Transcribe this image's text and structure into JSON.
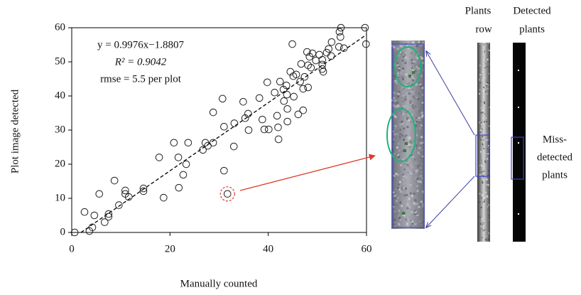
{
  "chart_data": {
    "type": "scatter",
    "x_label": "Manually counted",
    "y_label": "Plot image detected",
    "equation": [
      "y = 0.9976x−1.8807",
      "R² = 0.9042",
      "rmse = 5.5 per plot"
    ],
    "fit": {
      "slope": 0.9976,
      "intercept": -1.8807
    },
    "xlim": [
      0,
      60
    ],
    "ylim": [
      0,
      60
    ],
    "xticks": [
      0,
      20,
      40,
      60
    ],
    "yticks": [
      0,
      10,
      20,
      30,
      40,
      50,
      60
    ],
    "color": "#222222",
    "highlight_index": 32,
    "x": [
      0.6,
      2.6,
      3.6,
      4.2,
      4.6,
      5.6,
      6.7,
      7.5,
      7.5,
      8.7,
      9.6,
      10.9,
      10.9,
      11.6,
      14.6,
      14.6,
      17.8,
      18.7,
      20.8,
      21.7,
      21.8,
      22.7,
      23.3,
      23.7,
      26.7,
      27.2,
      27.7,
      28.8,
      28.8,
      30.7,
      31,
      31,
      31.7,
      33,
      33.1,
      34.9,
      35.3,
      35.9,
      36,
      38.2,
      38.8,
      39.2,
      40.1,
      39.8,
      41.3,
      41.8,
      42,
      42.1,
      42.4,
      43.1,
      43.2,
      43.7,
      43.8,
      43.9,
      43.9,
      44.5,
      44.9,
      45.1,
      45.2,
      45.7,
      46.1,
      46.5,
      46.7,
      47.1,
      47.1,
      47.4,
      47.9,
      48.1,
      48.1,
      48.4,
      48.7,
      49,
      49.7,
      50.4,
      51,
      51,
      51.2,
      51,
      51.9,
      52.3,
      52.8,
      52.9,
      54.4,
      54.5,
      54.7,
      54.8,
      55.4,
      59.7,
      59.9
    ],
    "y": [
      0,
      6,
      0.4,
      1.5,
      5,
      11.3,
      3,
      4.6,
      5.4,
      15.2,
      8,
      12.3,
      11.3,
      10.4,
      12.9,
      12.1,
      22,
      10.2,
      26.3,
      22,
      13.1,
      16.9,
      20,
      26.3,
      24.2,
      26.3,
      25.4,
      26.3,
      35.2,
      39.2,
      18.1,
      31,
      11.3,
      25.2,
      32,
      38.3,
      33.5,
      34.8,
      30,
      39.4,
      33.1,
      30.2,
      30.2,
      44,
      41,
      34.2,
      30.8,
      27.3,
      44.2,
      41.9,
      38.5,
      43.1,
      40.4,
      36.2,
      32.5,
      47.1,
      55.2,
      45.8,
      39.8,
      46.3,
      34.6,
      44.2,
      49.4,
      35.8,
      42.1,
      45.6,
      52.9,
      49,
      42.5,
      51.5,
      48.3,
      52.5,
      50.4,
      52.1,
      50.6,
      49.2,
      47.1,
      47.9,
      52.7,
      53.8,
      51.7,
      55.8,
      54.4,
      58.8,
      57.3,
      60,
      54,
      60,
      55.2
    ]
  },
  "figure_labels": {
    "plants_row": [
      "Plants",
      "row"
    ],
    "detected_plants": [
      "Detected",
      "plants"
    ],
    "miss_detected": [
      "Miss-",
      "detected",
      "plants"
    ]
  }
}
